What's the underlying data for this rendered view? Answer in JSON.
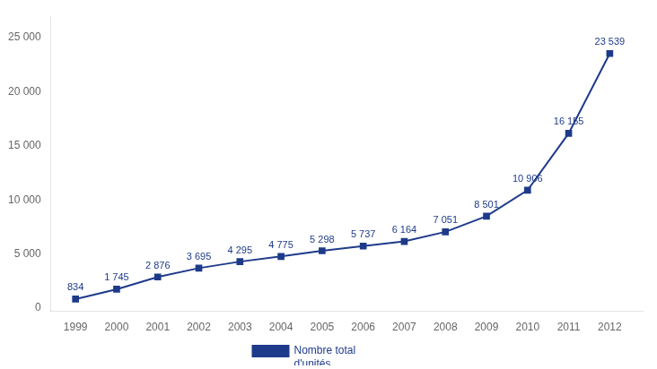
{
  "chart_data": {
    "type": "line",
    "x": [
      1999,
      2000,
      2001,
      2002,
      2003,
      2004,
      2005,
      2006,
      2007,
      2008,
      2009,
      2010,
      2011,
      2012
    ],
    "series": [
      {
        "name": "Nombre total\nd'unités",
        "color": "#1E3A8A",
        "marker": "square",
        "values": [
          834,
          1745,
          2876,
          3695,
          4295,
          4775,
          5298,
          5737,
          6164,
          7051,
          8501,
          10906,
          16155,
          23539
        ],
        "value_labels": [
          "834",
          "1 745",
          "2 876",
          "3 695",
          "4 295",
          "4 775",
          "5 298",
          "5 737",
          "6 164",
          "7 051",
          "8 501",
          "10 906",
          "16 155",
          "23 539"
        ]
      }
    ],
    "xlim": [
      1998.4,
      2012.8
    ],
    "xticks": [
      1999,
      2000,
      2001,
      2002,
      2003,
      2004,
      2005,
      2006,
      2007,
      2008,
      2009,
      2010,
      2011,
      2012
    ],
    "ylim": [
      -300,
      27000
    ],
    "yticks": [
      0,
      {
        "value": 5000,
        "label": "5 000"
      },
      {
        "value": 10000,
        "label": "10 000"
      },
      {
        "value": 15000,
        "label": "15 000"
      },
      {
        "value": 20000,
        "label": "20 000"
      },
      {
        "value": 25000,
        "label": "25 000"
      }
    ],
    "grid": false,
    "legend": "bottom",
    "data_labels": true
  }
}
